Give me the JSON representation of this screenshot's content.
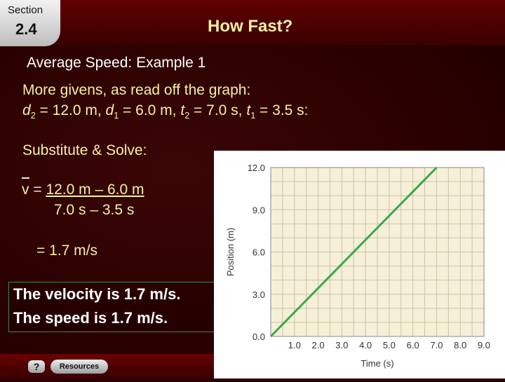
{
  "header": {
    "section_label": "Section",
    "section_number": "2.4",
    "title": "How Fast?"
  },
  "content": {
    "subtitle": "Average Speed: Example 1",
    "givens_intro": "More givens, as read off the graph:",
    "givens": {
      "d2_sym": "d",
      "d2_sub": "2",
      "d2_val": " = 12.0 m, ",
      "d1_sym": "d",
      "d1_sub": "1",
      "d1_val": " = 6.0 m, ",
      "t2_sym": "t",
      "t2_sub": "2",
      "t2_val": " = 7.0 s, ",
      "t1_sym": "t",
      "t1_sub": "1",
      "t1_val": " = 3.5 s:"
    },
    "substitute": "Substitute & Solve:",
    "eq_var": "v",
    "eq_equals": " = ",
    "eq_numerator": "12.0 m – 6.0 m",
    "eq_denominator": "7.0 s – 3.5 s",
    "result": "= 1.7 m/s",
    "answer_line1": "The velocity is 1.7 m/s.",
    "answer_line2": "The speed is 1.7 m/s."
  },
  "footer": {
    "help_label": "?",
    "resources_label": "Resources"
  },
  "chart_data": {
    "type": "line",
    "xlabel": "Time (s)",
    "ylabel": "Position (m)",
    "xlim": [
      0,
      9
    ],
    "ylim": [
      0,
      12
    ],
    "x_ticks": [
      "1.0",
      "2.0",
      "3.0",
      "4.0",
      "5.0",
      "6.0",
      "7.0",
      "8.0",
      "9.0"
    ],
    "y_ticks": [
      "0.0",
      "3.0",
      "6.0",
      "9.0",
      "12.0"
    ],
    "series": [
      {
        "x": [
          0,
          7
        ],
        "y": [
          0,
          12
        ],
        "color": "#3aa84a"
      }
    ],
    "grid": true,
    "plot_background": "#f7f0d8"
  }
}
